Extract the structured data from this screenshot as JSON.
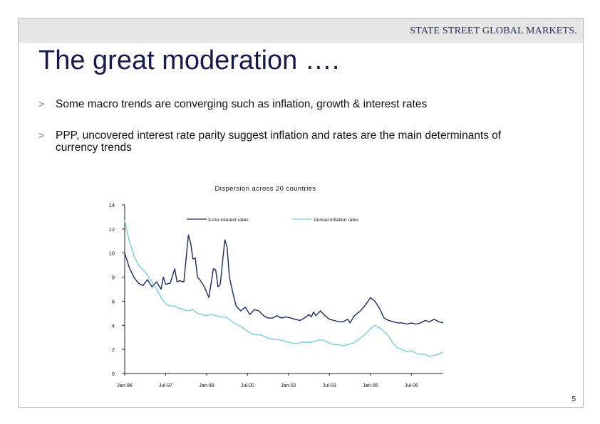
{
  "header": {
    "brand": "STATE STREET GLOBAL MARKETS."
  },
  "slide": {
    "title": "The great moderation ….",
    "bullets": [
      {
        "marker": ">",
        "text": "Some macro trends are converging such as inflation, growth & interest rates"
      },
      {
        "marker": ">",
        "text": "PPP, uncovered interest rate parity suggest inflation and rates are the main determinants of currency trends"
      }
    ],
    "page_number": "5"
  },
  "colors": {
    "interest": "#1a2a5c",
    "inflation": "#7ecbd9",
    "title": "#16194a",
    "header_band": "#e6e6e6"
  },
  "chart_data": {
    "type": "line",
    "title": "Dispersion across 20 countries",
    "xlabel": "",
    "ylabel": "",
    "ylim": [
      0,
      14
    ],
    "yticks": [
      0,
      2,
      4,
      6,
      8,
      10,
      12,
      14
    ],
    "ytick_labels": [
      "0",
      "2",
      "4",
      "6",
      "8",
      "10",
      "12",
      "14"
    ],
    "xlim": [
      "1996-01",
      "2007-09"
    ],
    "xticks": [
      "1996-01",
      "1997-07",
      "1999-01",
      "2000-07",
      "2002-01",
      "2003-07",
      "2005-01",
      "2006-07"
    ],
    "xtick_labels": [
      "Jan-96",
      "Jul-97",
      "Jan-99",
      "Jul-00",
      "Jan-02",
      "Jul-03",
      "Jan-05",
      "Jul-06"
    ],
    "grid": false,
    "legend": "top",
    "series": [
      {
        "name": "3-mo interest rates",
        "color": "#1a2a5c",
        "points": [
          [
            "1996-01",
            10.0
          ],
          [
            "1996-03",
            8.8
          ],
          [
            "1996-05",
            8.0
          ],
          [
            "1996-07",
            7.5
          ],
          [
            "1996-09",
            7.3
          ],
          [
            "1996-11",
            7.8
          ],
          [
            "1997-01",
            7.2
          ],
          [
            "1997-03",
            7.6
          ],
          [
            "1997-05",
            7.0
          ],
          [
            "1997-06",
            8.0
          ],
          [
            "1997-07",
            7.4
          ],
          [
            "1997-09",
            7.5
          ],
          [
            "1997-11",
            8.7
          ],
          [
            "1997-12",
            7.6
          ],
          [
            "1998-01",
            7.7
          ],
          [
            "1998-03",
            7.6
          ],
          [
            "1998-05",
            11.5
          ],
          [
            "1998-06",
            10.8
          ],
          [
            "1998-07",
            9.5
          ],
          [
            "1998-08",
            9.6
          ],
          [
            "1998-09",
            8.0
          ],
          [
            "1998-10",
            7.8
          ],
          [
            "1998-12",
            7.2
          ],
          [
            "1999-02",
            6.3
          ],
          [
            "1999-04",
            8.7
          ],
          [
            "1999-05",
            8.6
          ],
          [
            "1999-06",
            7.2
          ],
          [
            "1999-07",
            7.4
          ],
          [
            "1999-09",
            11.1
          ],
          [
            "1999-10",
            10.5
          ],
          [
            "1999-11",
            8.0
          ],
          [
            "2000-01",
            6.3
          ],
          [
            "2000-02",
            5.6
          ],
          [
            "2000-04",
            5.2
          ],
          [
            "2000-06",
            5.5
          ],
          [
            "2000-08",
            4.9
          ],
          [
            "2000-10",
            5.3
          ],
          [
            "2000-12",
            5.2
          ],
          [
            "2001-02",
            4.8
          ],
          [
            "2001-04",
            4.6
          ],
          [
            "2001-06",
            4.6
          ],
          [
            "2001-08",
            4.8
          ],
          [
            "2001-10",
            4.6
          ],
          [
            "2001-12",
            4.7
          ],
          [
            "2002-02",
            4.6
          ],
          [
            "2002-04",
            4.5
          ],
          [
            "2002-06",
            4.4
          ],
          [
            "2002-08",
            4.6
          ],
          [
            "2002-10",
            4.9
          ],
          [
            "2002-11",
            4.7
          ],
          [
            "2002-12",
            5.1
          ],
          [
            "2003-01",
            4.8
          ],
          [
            "2003-03",
            5.2
          ],
          [
            "2003-05",
            4.8
          ],
          [
            "2003-07",
            4.5
          ],
          [
            "2003-09",
            4.4
          ],
          [
            "2003-11",
            4.3
          ],
          [
            "2004-01",
            4.3
          ],
          [
            "2004-03",
            4.5
          ],
          [
            "2004-04",
            4.2
          ],
          [
            "2004-06",
            4.8
          ],
          [
            "2004-08",
            5.1
          ],
          [
            "2004-10",
            5.5
          ],
          [
            "2004-12",
            6.0
          ],
          [
            "2005-01",
            6.3
          ],
          [
            "2005-03",
            6.0
          ],
          [
            "2005-05",
            5.4
          ],
          [
            "2005-07",
            4.6
          ],
          [
            "2005-09",
            4.4
          ],
          [
            "2005-11",
            4.3
          ],
          [
            "2006-01",
            4.2
          ],
          [
            "2006-03",
            4.2
          ],
          [
            "2006-05",
            4.1
          ],
          [
            "2006-07",
            4.2
          ],
          [
            "2006-09",
            4.1
          ],
          [
            "2006-11",
            4.2
          ],
          [
            "2007-01",
            4.4
          ],
          [
            "2007-03",
            4.3
          ],
          [
            "2007-05",
            4.5
          ],
          [
            "2007-07",
            4.3
          ],
          [
            "2007-09",
            4.2
          ]
        ]
      },
      {
        "name": "Annual inflation rates",
        "color": "#7ecbd9",
        "points": [
          [
            "1996-01",
            12.7
          ],
          [
            "1996-03",
            11.0
          ],
          [
            "1996-05",
            9.8
          ],
          [
            "1996-07",
            9.0
          ],
          [
            "1996-09",
            8.6
          ],
          [
            "1996-11",
            8.2
          ],
          [
            "1997-01",
            7.6
          ],
          [
            "1997-03",
            7.0
          ],
          [
            "1997-05",
            6.3
          ],
          [
            "1997-07",
            5.8
          ],
          [
            "1997-09",
            5.6
          ],
          [
            "1997-11",
            5.6
          ],
          [
            "1998-01",
            5.4
          ],
          [
            "1998-03",
            5.3
          ],
          [
            "1998-05",
            5.2
          ],
          [
            "1998-07",
            5.3
          ],
          [
            "1998-09",
            5.0
          ],
          [
            "1998-11",
            4.9
          ],
          [
            "1999-01",
            4.8
          ],
          [
            "1999-03",
            4.9
          ],
          [
            "1999-05",
            4.8
          ],
          [
            "1999-07",
            4.7
          ],
          [
            "1999-09",
            4.7
          ],
          [
            "1999-11",
            4.5
          ],
          [
            "2000-01",
            4.2
          ],
          [
            "2000-03",
            4.0
          ],
          [
            "2000-05",
            3.8
          ],
          [
            "2000-07",
            3.5
          ],
          [
            "2000-09",
            3.3
          ],
          [
            "2000-11",
            3.2
          ],
          [
            "2001-01",
            3.2
          ],
          [
            "2001-03",
            3.0
          ],
          [
            "2001-05",
            2.9
          ],
          [
            "2001-07",
            2.8
          ],
          [
            "2001-09",
            2.8
          ],
          [
            "2001-11",
            2.7
          ],
          [
            "2002-01",
            2.6
          ],
          [
            "2002-03",
            2.5
          ],
          [
            "2002-05",
            2.5
          ],
          [
            "2002-07",
            2.6
          ],
          [
            "2002-09",
            2.6
          ],
          [
            "2002-11",
            2.6
          ],
          [
            "2003-01",
            2.7
          ],
          [
            "2003-03",
            2.8
          ],
          [
            "2003-05",
            2.7
          ],
          [
            "2003-07",
            2.5
          ],
          [
            "2003-09",
            2.4
          ],
          [
            "2003-11",
            2.4
          ],
          [
            "2004-01",
            2.3
          ],
          [
            "2004-03",
            2.4
          ],
          [
            "2004-05",
            2.5
          ],
          [
            "2004-07",
            2.7
          ],
          [
            "2004-09",
            3.0
          ],
          [
            "2004-11",
            3.3
          ],
          [
            "2005-01",
            3.7
          ],
          [
            "2005-03",
            4.0
          ],
          [
            "2005-05",
            3.8
          ],
          [
            "2005-07",
            3.5
          ],
          [
            "2005-09",
            3.1
          ],
          [
            "2005-11",
            2.5
          ],
          [
            "2006-01",
            2.1
          ],
          [
            "2006-03",
            2.0
          ],
          [
            "2006-05",
            1.8
          ],
          [
            "2006-07",
            1.9
          ],
          [
            "2006-09",
            1.7
          ],
          [
            "2006-11",
            1.6
          ],
          [
            "2007-01",
            1.6
          ],
          [
            "2007-03",
            1.4
          ],
          [
            "2007-05",
            1.5
          ],
          [
            "2007-07",
            1.6
          ],
          [
            "2007-09",
            1.8
          ]
        ]
      }
    ]
  }
}
